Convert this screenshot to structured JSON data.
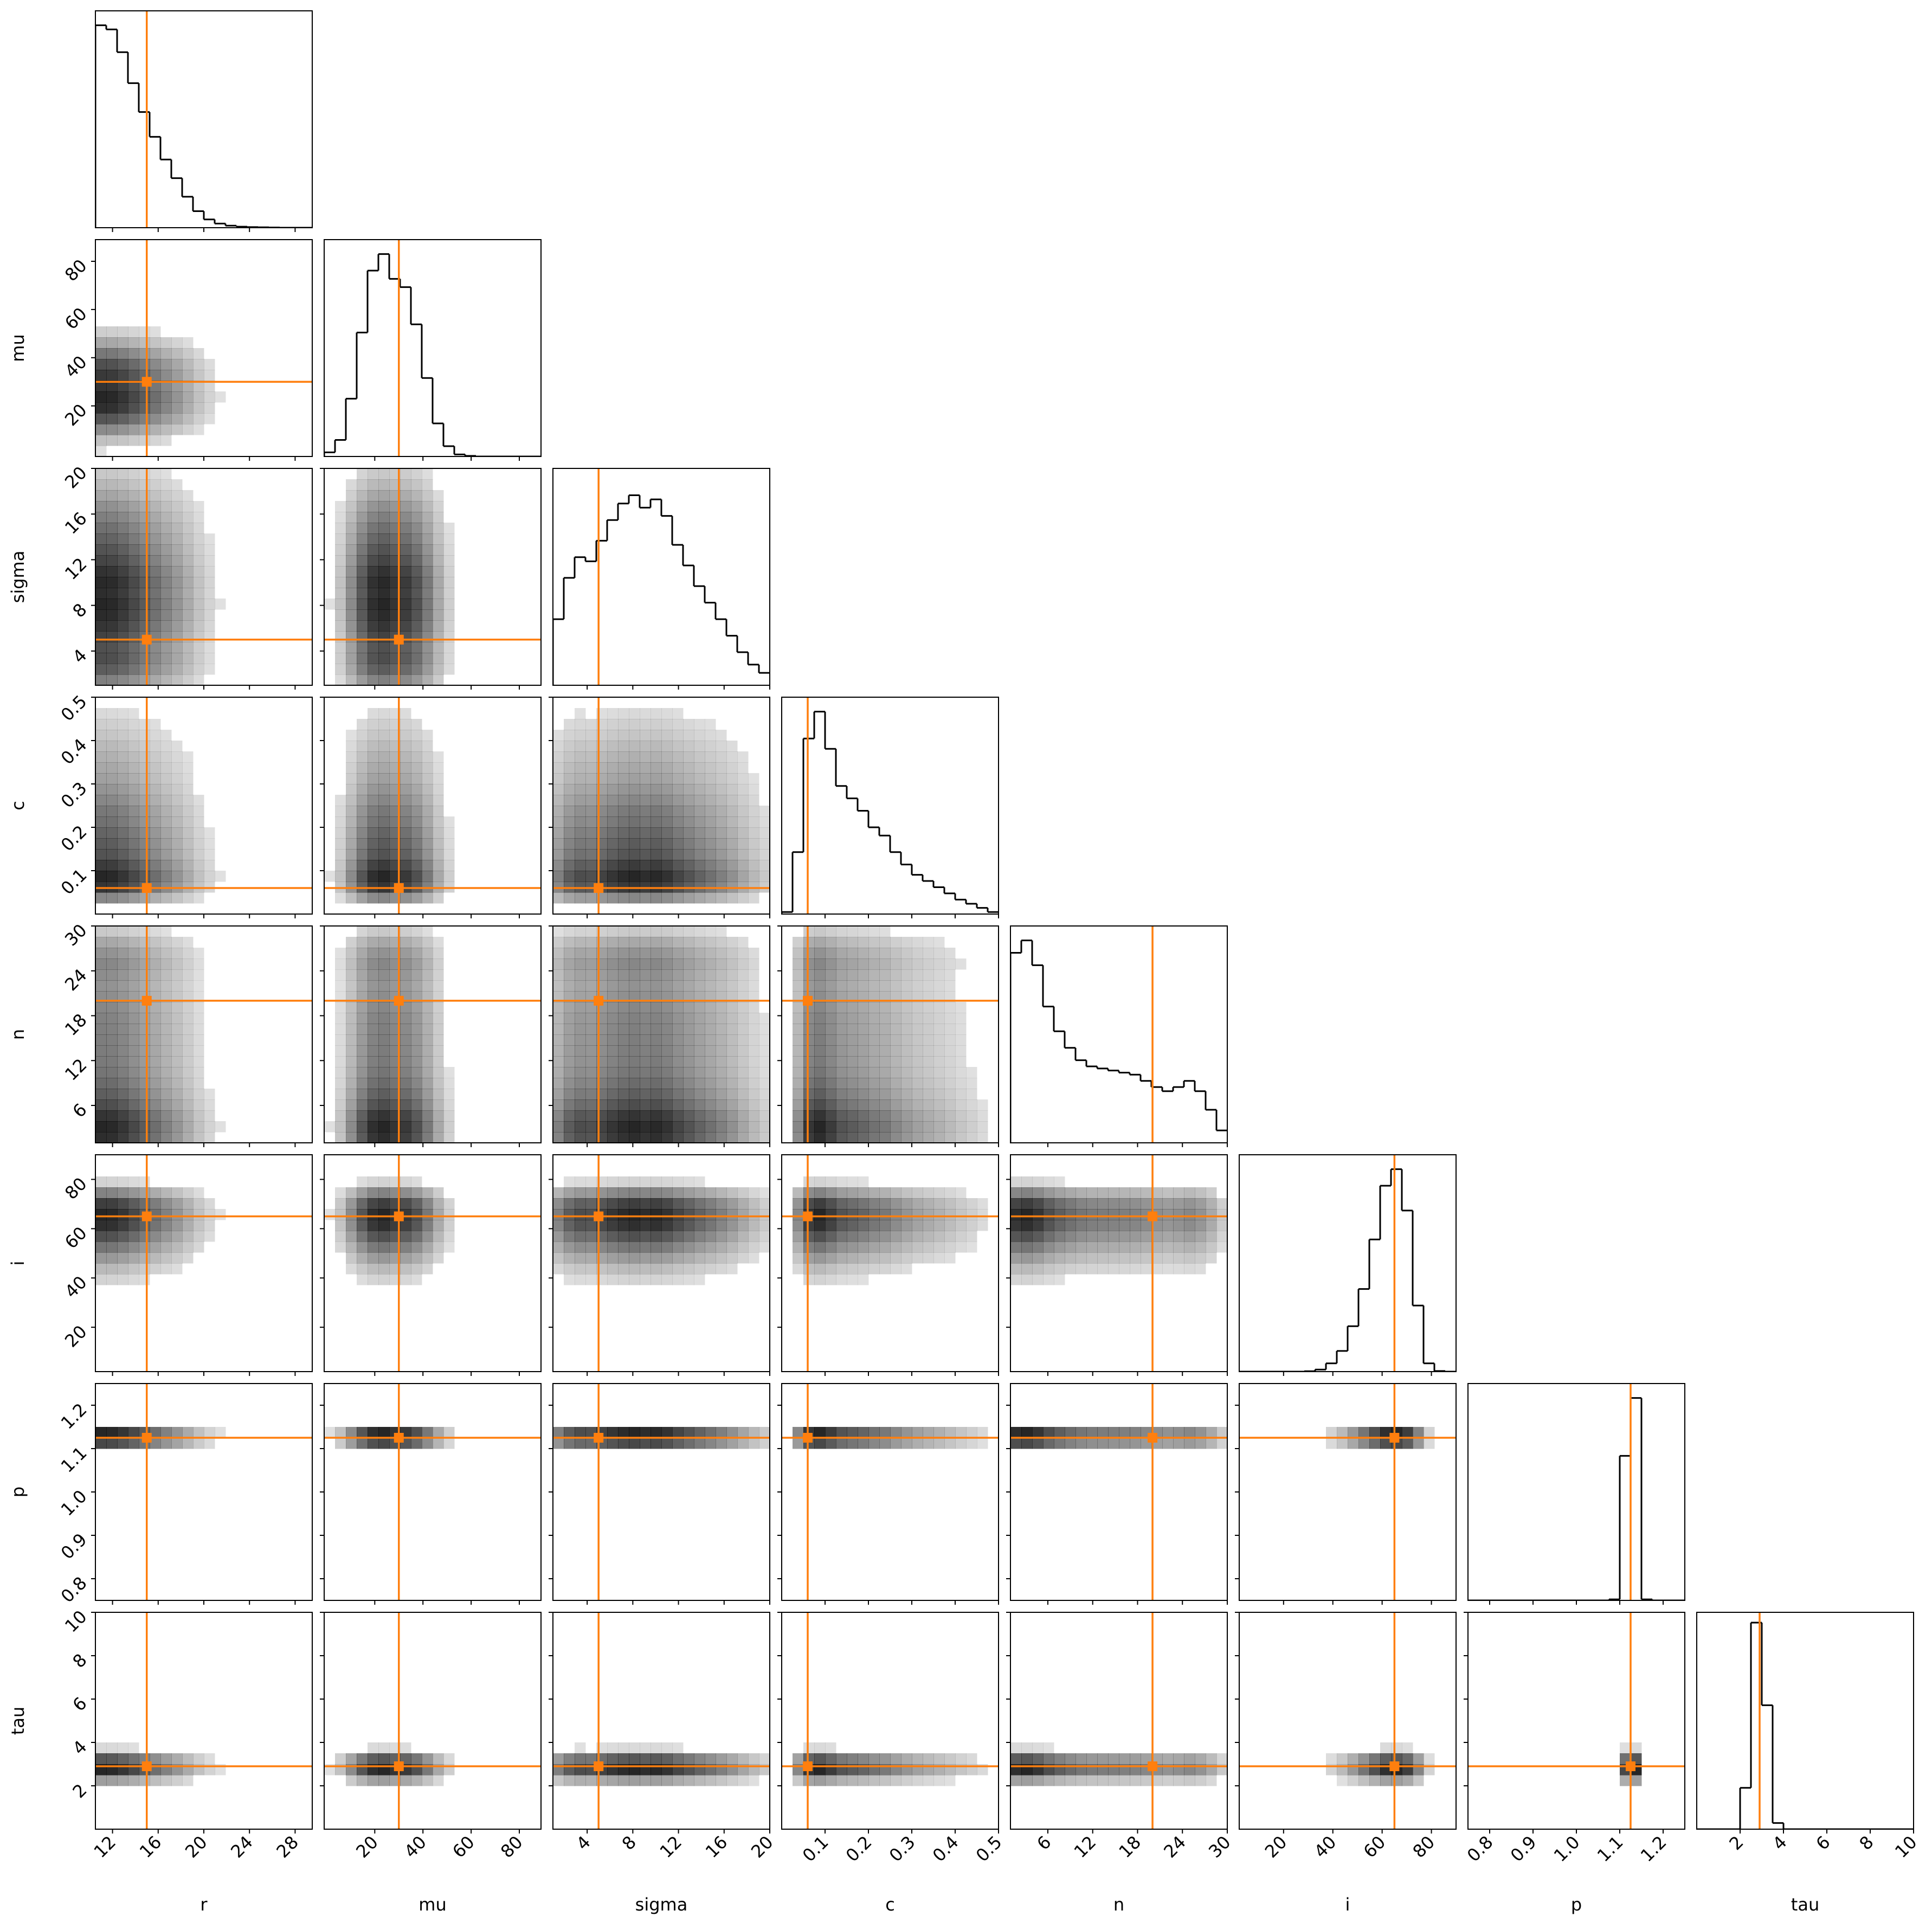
{
  "chart_data": {
    "type": "corner",
    "truth_color": "#ff7f0e",
    "hist_color": "#000000",
    "hist_ylim": [
      0,
      105
    ],
    "params": [
      {
        "name": "r",
        "lim": [
          10.5,
          29.5
        ],
        "ticks": [
          12,
          16,
          20,
          24,
          28
        ],
        "truth": 15,
        "bins": [
          10.5,
          11.45,
          12.4,
          13.35,
          14.3,
          15.25,
          16.2,
          17.15,
          18.1,
          19.05,
          20,
          20.95,
          21.9,
          22.85,
          23.8,
          24.75,
          25.7,
          26.65,
          27.6,
          28.55,
          29.5
        ],
        "counts": [
          98,
          96,
          85,
          70,
          56,
          44,
          33,
          24,
          15,
          8,
          4,
          2,
          1,
          0.5,
          0.3,
          0.2,
          0.1,
          0,
          0,
          0
        ]
      },
      {
        "name": "mu",
        "lim": [
          -1,
          89
        ],
        "ticks": [
          20,
          40,
          60,
          80
        ],
        "truth": 30,
        "bins": [
          -1,
          3.5,
          8,
          12.5,
          17,
          21.5,
          26,
          30.5,
          35,
          39.5,
          44,
          48.5,
          53,
          57.5,
          62,
          66.5,
          71,
          75.5,
          80,
          84.5,
          89
        ],
        "counts": [
          2,
          8,
          28,
          60,
          90,
          98,
          86,
          82,
          64,
          38,
          16,
          5,
          1,
          0.3,
          0,
          0,
          0,
          0,
          0,
          0
        ]
      },
      {
        "name": "sigma",
        "lim": [
          1,
          20
        ],
        "ticks": [
          4,
          8,
          12,
          16,
          20
        ],
        "truth": 5,
        "bins": [
          1,
          1.95,
          2.9,
          3.85,
          4.8,
          5.75,
          6.7,
          7.65,
          8.6,
          9.55,
          10.5,
          11.45,
          12.4,
          13.35,
          14.3,
          15.25,
          16.2,
          17.15,
          18.1,
          19.05,
          20
        ],
        "counts": [
          32,
          52,
          62,
          60,
          70,
          80,
          88,
          92,
          86,
          90,
          82,
          68,
          58,
          48,
          40,
          32,
          24,
          16,
          10,
          6
        ]
      },
      {
        "name": "c",
        "lim": [
          0,
          0.5
        ],
        "ticks": [
          0.1,
          0.2,
          0.3,
          0.4,
          0.5
        ],
        "truth": 0.06,
        "bins": [
          0,
          0.025,
          0.05,
          0.075,
          0.1,
          0.125,
          0.15,
          0.175,
          0.2,
          0.225,
          0.25,
          0.275,
          0.3,
          0.325,
          0.35,
          0.375,
          0.4,
          0.425,
          0.45,
          0.475,
          0.5
        ],
        "counts": [
          1,
          30,
          85,
          98,
          80,
          62,
          56,
          50,
          42,
          38,
          30,
          24,
          19,
          16,
          13,
          10,
          7,
          5,
          3,
          1
        ]
      },
      {
        "name": "n",
        "lim": [
          1,
          30
        ],
        "ticks": [
          6,
          12,
          18,
          24,
          30
        ],
        "truth": 20,
        "bins": [
          1,
          2.45,
          3.9,
          5.35,
          6.8,
          8.25,
          9.7,
          11.15,
          12.6,
          14.05,
          15.5,
          16.95,
          18.4,
          19.85,
          21.3,
          22.75,
          24.2,
          25.65,
          27.1,
          28.55,
          30
        ],
        "counts": [
          92,
          98,
          86,
          66,
          54,
          46,
          40,
          37,
          36,
          35,
          34,
          33,
          30,
          27,
          25,
          27,
          30,
          25,
          16,
          6
        ]
      },
      {
        "name": "i",
        "lim": [
          2,
          90
        ],
        "ticks": [
          20,
          40,
          60,
          80
        ],
        "truth": 65,
        "bins": [
          2,
          6.4,
          10.8,
          15.2,
          19.6,
          24,
          28.4,
          32.8,
          37.2,
          41.6,
          46,
          50.4,
          54.8,
          59.2,
          63.6,
          68,
          72.4,
          76.8,
          81.2,
          85.6,
          90
        ],
        "counts": [
          0,
          0,
          0,
          0,
          0,
          0,
          0.2,
          1,
          4,
          10,
          22,
          40,
          64,
          90,
          98,
          78,
          32,
          4,
          0.3,
          0
        ]
      },
      {
        "name": "p",
        "lim": [
          0.75,
          1.25
        ],
        "ticks": [
          0.8,
          0.9,
          {
            "value": 1,
            "label": "1.0"
          },
          1.1,
          1.2
        ],
        "truth": 1.125,
        "bins": [
          0.75,
          0.775,
          0.8,
          0.825,
          0.85,
          0.875,
          0.9,
          0.925,
          0.95,
          0.975,
          1,
          1.025,
          1.05,
          1.075,
          1.1,
          1.125,
          1.15,
          1.175,
          1.2,
          1.225,
          1.25
        ],
        "counts": [
          0,
          0,
          0,
          0,
          0,
          0,
          0,
          0,
          0,
          0,
          0,
          0,
          0,
          0.5,
          70,
          98,
          0.5,
          0,
          0,
          0
        ]
      },
      {
        "name": "tau",
        "lim": [
          0,
          10
        ],
        "ticks": [
          2,
          4,
          6,
          8,
          10
        ],
        "truth": 2.9,
        "bins": [
          0,
          0.5,
          1,
          1.5,
          2,
          2.5,
          3,
          3.5,
          4,
          4.5,
          5,
          5.5,
          6,
          6.5,
          7,
          7.5,
          8,
          8.5,
          9,
          9.5,
          10
        ],
        "counts": [
          0,
          0,
          0,
          0,
          20,
          100,
          60,
          3,
          0,
          0,
          0,
          0,
          0,
          0,
          0,
          0,
          0,
          0,
          0,
          0
        ]
      }
    ]
  }
}
